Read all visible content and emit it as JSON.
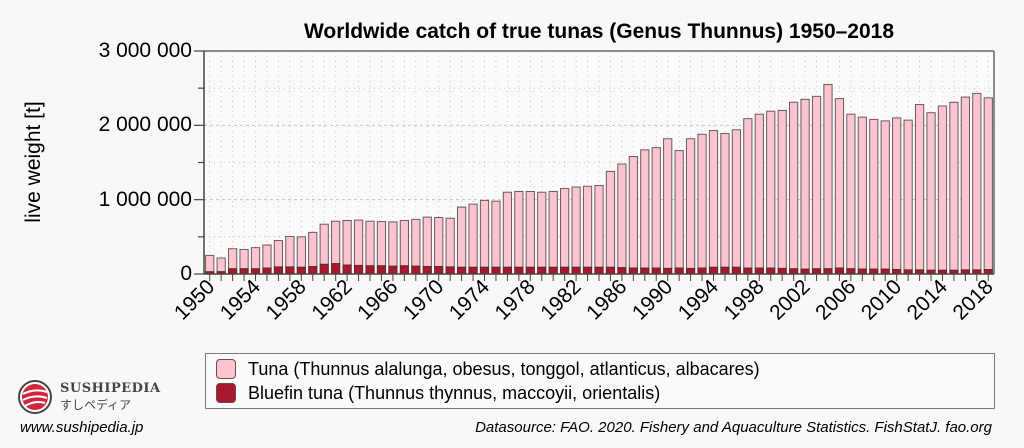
{
  "chart_data": {
    "type": "bar",
    "stacked": true,
    "title": "Worldwide catch of true tunas (Genus Thunnus) 1950–2018",
    "xlabel": "",
    "ylabel": "live weight [t]",
    "ylim": [
      0,
      3000000
    ],
    "yticks": [
      "0",
      "1 000 000",
      "2 000 000",
      "3 000 000"
    ],
    "ytick_values": [
      0,
      1000000,
      2000000,
      3000000
    ],
    "grid": true,
    "legend_position": "bottom",
    "x": [
      1950,
      1951,
      1952,
      1953,
      1954,
      1955,
      1956,
      1957,
      1958,
      1959,
      1960,
      1961,
      1962,
      1963,
      1964,
      1965,
      1966,
      1967,
      1968,
      1969,
      1970,
      1971,
      1972,
      1973,
      1974,
      1975,
      1976,
      1977,
      1978,
      1979,
      1980,
      1981,
      1982,
      1983,
      1984,
      1985,
      1986,
      1987,
      1988,
      1989,
      1990,
      1991,
      1992,
      1993,
      1994,
      1995,
      1996,
      1997,
      1998,
      1999,
      2000,
      2001,
      2002,
      2003,
      2004,
      2005,
      2006,
      2007,
      2008,
      2009,
      2010,
      2011,
      2012,
      2013,
      2014,
      2015,
      2016,
      2017,
      2018
    ],
    "xtick_labels": [
      "1950",
      "1954",
      "1958",
      "1962",
      "1966",
      "1970",
      "1974",
      "1978",
      "1982",
      "1986",
      "1990",
      "1994",
      "1998",
      "2002",
      "2006",
      "2010",
      "2014",
      "2018"
    ],
    "series": [
      {
        "name": "Tuna (Thunnus alalunga, obesus, tonggol, atlanticus, albacares)",
        "color": "#fcc4cf",
        "values": [
          220000,
          185000,
          270000,
          260000,
          285000,
          310000,
          355000,
          410000,
          410000,
          460000,
          540000,
          570000,
          600000,
          610000,
          600000,
          595000,
          595000,
          610000,
          630000,
          665000,
          660000,
          655000,
          810000,
          850000,
          900000,
          890000,
          1010000,
          1020000,
          1020000,
          1010000,
          1020000,
          1060000,
          1080000,
          1090000,
          1100000,
          1290000,
          1395000,
          1500000,
          1590000,
          1620000,
          1745000,
          1580000,
          1745000,
          1800000,
          1840000,
          1800000,
          1850000,
          2010000,
          2070000,
          2110000,
          2125000,
          2240000,
          2285000,
          2320000,
          2480000,
          2280000,
          2080000,
          2045000,
          2015000,
          1995000,
          2040000,
          2015000,
          2225000,
          2120000,
          2210000,
          2260000,
          2325000,
          2375000,
          2310000
        ]
      },
      {
        "name": "Bluefin tuna (Thunnus thynnus, maccoyii, orientalis)",
        "color": "#a8192e",
        "values": [
          30000,
          30000,
          70000,
          70000,
          70000,
          80000,
          95000,
          95000,
          90000,
          100000,
          130000,
          140000,
          120000,
          115000,
          110000,
          110000,
          105000,
          110000,
          105000,
          100000,
          100000,
          95000,
          90000,
          90000,
          90000,
          90000,
          90000,
          90000,
          90000,
          90000,
          90000,
          90000,
          90000,
          90000,
          90000,
          90000,
          85000,
          80000,
          80000,
          80000,
          75000,
          80000,
          75000,
          80000,
          90000,
          90000,
          90000,
          80000,
          80000,
          80000,
          75000,
          70000,
          65000,
          70000,
          70000,
          80000,
          70000,
          65000,
          65000,
          65000,
          60000,
          55000,
          55000,
          50000,
          50000,
          50000,
          55000,
          55000,
          60000
        ]
      }
    ]
  },
  "legend": {
    "items": [
      {
        "label": "Tuna (Thunnus alalunga, obesus, tonggol, atlanticus, albacares)",
        "color": "#fcc4cf"
      },
      {
        "label": "Bluefin tuna (Thunnus thynnus, maccoyii, orientalis)",
        "color": "#a8192e"
      }
    ]
  },
  "branding": {
    "name": "SUSHIPEDIA",
    "kana": "すしペディア",
    "url": "www.sushipedia.jp"
  },
  "source": "Datasource: FAO. 2020. Fishery and Aquaculture Statistics. FishStatJ. fao.org"
}
